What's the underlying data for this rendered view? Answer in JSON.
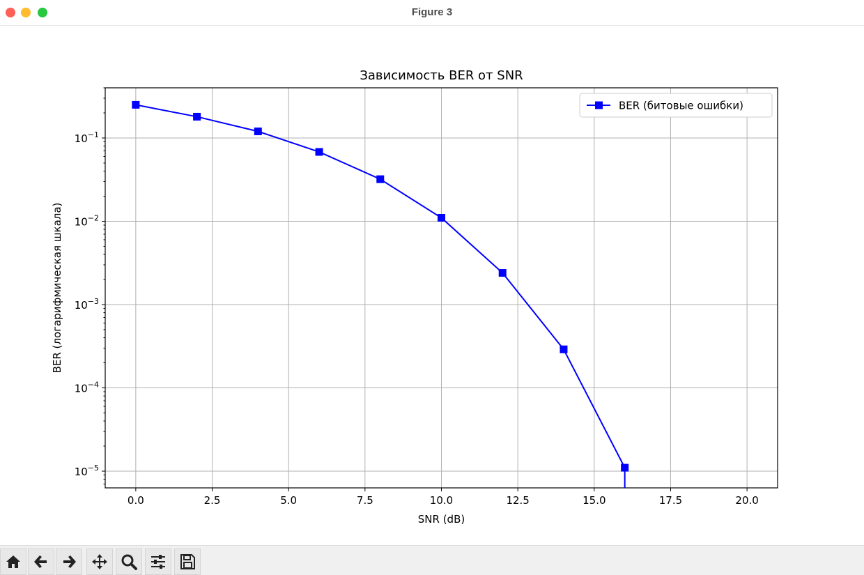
{
  "window": {
    "title": "Figure 3"
  },
  "toolbar": {
    "buttons": [
      {
        "icon": "home-icon"
      },
      {
        "icon": "back-arrow-icon"
      },
      {
        "icon": "forward-arrow-icon"
      },
      {
        "icon": "pan-icon"
      },
      {
        "icon": "zoom-icon"
      },
      {
        "icon": "configure-subplots-icon"
      },
      {
        "icon": "save-icon"
      }
    ]
  },
  "colors": {
    "series": "#0000ff",
    "grid": "#b0b0b0",
    "axes": "#000000"
  },
  "chart_data": {
    "type": "line",
    "title": "Зависимость BER от SNR",
    "xlabel": "SNR (dB)",
    "ylabel": "BER (логарифмическая шкала)",
    "yscale": "log",
    "xlim": [
      -1.0,
      21.0
    ],
    "ylim": [
      6.3e-06,
      0.4
    ],
    "grid": true,
    "legend_position": "top-right",
    "xticks": [
      {
        "value": 0.0,
        "label": "0.0"
      },
      {
        "value": 2.5,
        "label": "2.5"
      },
      {
        "value": 5.0,
        "label": "5.0"
      },
      {
        "value": 7.5,
        "label": "7.5"
      },
      {
        "value": 10.0,
        "label": "10.0"
      },
      {
        "value": 12.5,
        "label": "12.5"
      },
      {
        "value": 15.0,
        "label": "15.0"
      },
      {
        "value": 17.5,
        "label": "17.5"
      },
      {
        "value": 20.0,
        "label": "20.0"
      }
    ],
    "yticks": [
      {
        "value": 0.1,
        "base": "10",
        "exp": "−1"
      },
      {
        "value": 0.01,
        "base": "10",
        "exp": "−2"
      },
      {
        "value": 0.001,
        "base": "10",
        "exp": "−3"
      },
      {
        "value": 0.0001,
        "base": "10",
        "exp": "−4"
      },
      {
        "value": 1e-05,
        "base": "10",
        "exp": "−5"
      }
    ],
    "series": [
      {
        "name": "BER (битовые ошибки)",
        "marker": "square",
        "x": [
          0,
          2,
          4,
          6,
          8,
          10,
          12,
          14,
          16
        ],
        "y": [
          0.25,
          0.18,
          0.12,
          0.068,
          0.032,
          0.011,
          0.0024,
          0.00029,
          1.1e-05
        ]
      }
    ]
  }
}
